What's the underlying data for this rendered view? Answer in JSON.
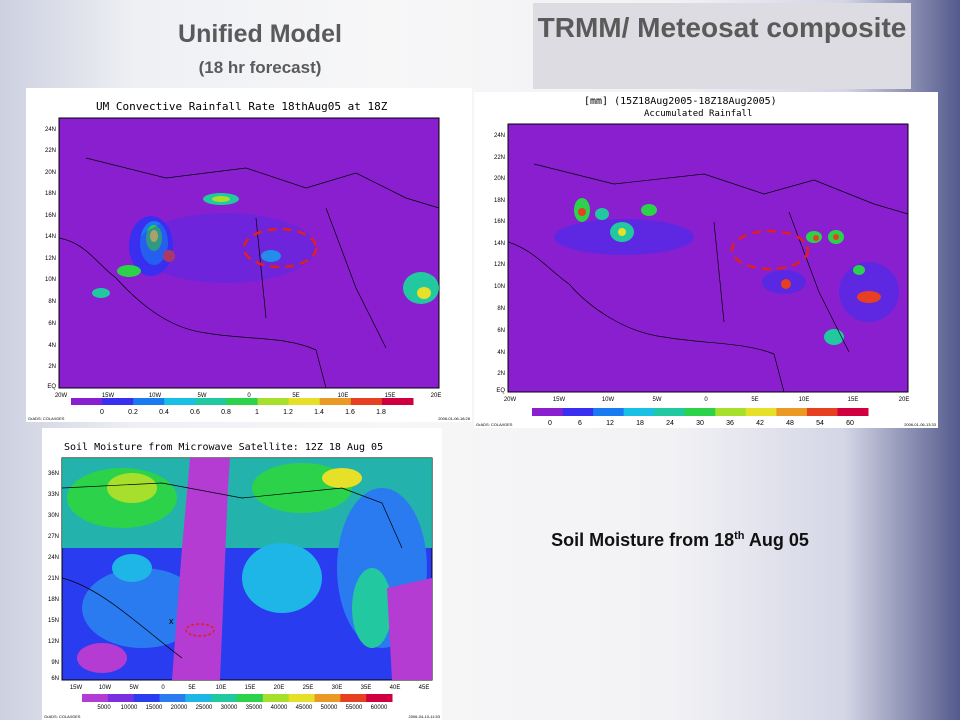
{
  "slide": {
    "um_title": "Unified Model",
    "um_subtitle": "(18 hr forecast)",
    "trmm_title": "TRMM/ Meteosat composite",
    "soil_caption_main": "Soil Moisture from 18",
    "soil_caption_sup": "th",
    "soil_caption_end": " Aug 05"
  },
  "panels": {
    "um": {
      "title": "UM Convective Rainfall Rate 18thAug05 at 18Z",
      "lat_labels": [
        "24N",
        "22N",
        "20N",
        "18N",
        "16N",
        "14N",
        "12N",
        "10N",
        "8N",
        "6N",
        "4N",
        "2N",
        "EQ"
      ],
      "lon_labels": [
        "20W",
        "15W",
        "10W",
        "5W",
        "0",
        "5E",
        "10E",
        "15E",
        "20E"
      ],
      "legend_values": [
        "0",
        "0.2",
        "0.4",
        "0.6",
        "0.8",
        "1",
        "1.2",
        "1.4",
        "1.6",
        "1.8"
      ],
      "footer_left": "GrADS: COLA/IGES",
      "footer_right": "2006-01-06-18:28",
      "colors": [
        "#8a1fd0",
        "#3a2ff0",
        "#1a7af0",
        "#18c0e6",
        "#22c8a0",
        "#2cd34a",
        "#a6e02c",
        "#e6e028",
        "#ea9a24",
        "#e64020",
        "#d00040"
      ]
    },
    "trmm": {
      "title_line1": "[mm] (15Z18Aug2005-18Z18Aug2005)",
      "title_line2": "Accumulated Rainfall",
      "lat_labels": [
        "24N",
        "22N",
        "20N",
        "18N",
        "16N",
        "14N",
        "12N",
        "10N",
        "8N",
        "6N",
        "4N",
        "2N",
        "EQ"
      ],
      "lon_labels": [
        "20W",
        "15W",
        "10W",
        "5W",
        "0",
        "5E",
        "10E",
        "15E",
        "20E"
      ],
      "legend_values": [
        "0",
        "6",
        "12",
        "18",
        "24",
        "30",
        "36",
        "42",
        "48",
        "54",
        "60"
      ],
      "footer_left": "GrADS: COLA/IGES",
      "footer_right": "2006-01-06-13:33",
      "colors": [
        "#8a1fd0",
        "#3a2ff0",
        "#1a7af0",
        "#18c0e6",
        "#22c8a0",
        "#2cd34a",
        "#a6e02c",
        "#e6e028",
        "#ea9a24",
        "#e64020",
        "#d00040"
      ]
    },
    "soil": {
      "title": "Soil Moisture from Microwave Satellite: 12Z 18 Aug 05",
      "lat_labels": [
        "36N",
        "33N",
        "30N",
        "27N",
        "24N",
        "21N",
        "18N",
        "15N",
        "12N",
        "9N",
        "6N"
      ],
      "lon_labels": [
        "15W",
        "10W",
        "5W",
        "0",
        "5E",
        "10E",
        "15E",
        "20E",
        "25E",
        "30E",
        "35E",
        "40E",
        "45E"
      ],
      "legend_values": [
        "5000",
        "10000",
        "15000",
        "20000",
        "25000",
        "30000",
        "35000",
        "40000",
        "45000",
        "50000",
        "55000",
        "60000"
      ],
      "marker": "x",
      "footer_left": "GrADS: COLA/IGES",
      "footer_right": "2006-04-10-11:53",
      "colors": [
        "#b43cd2",
        "#7a30e0",
        "#2a3cf0",
        "#2a7af0",
        "#1eb6e6",
        "#22c8a0",
        "#2cd34a",
        "#a6e02c",
        "#e6e028",
        "#ea9a24",
        "#e64020",
        "#d00040"
      ]
    }
  }
}
